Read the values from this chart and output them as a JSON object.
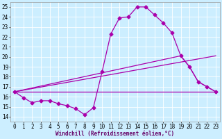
{
  "xlabel": "Windchill (Refroidissement éolien,°C)",
  "bg_color": "#cceeff",
  "grid_color": "#ffffff",
  "line_color": "#aa00aa",
  "xlim": [
    -0.5,
    23.5
  ],
  "ylim": [
    13.5,
    25.5
  ],
  "yticks": [
    14,
    15,
    16,
    17,
    18,
    19,
    20,
    21,
    22,
    23,
    24,
    25
  ],
  "xticks": [
    0,
    1,
    2,
    3,
    4,
    5,
    6,
    7,
    8,
    9,
    10,
    11,
    12,
    13,
    14,
    15,
    16,
    17,
    18,
    19,
    20,
    21,
    22,
    23
  ],
  "line1_x": [
    0,
    1,
    2,
    3,
    4,
    5,
    6,
    7,
    8,
    9,
    10,
    11,
    12,
    13,
    14,
    15,
    16,
    17,
    18,
    19,
    20,
    21,
    22,
    23
  ],
  "line1_y": [
    16.5,
    15.9,
    15.4,
    15.6,
    15.6,
    15.3,
    15.1,
    14.8,
    14.2,
    14.9,
    18.5,
    22.3,
    23.9,
    24.0,
    25.0,
    25.0,
    24.2,
    23.4,
    22.4,
    20.1,
    19.0,
    17.5,
    17.0,
    16.5
  ],
  "line2_x": [
    0,
    23
  ],
  "line2_y": [
    16.5,
    16.5
  ],
  "line3_x": [
    0,
    23
  ],
  "line3_y": [
    16.5,
    20.1
  ],
  "line4_x": [
    0,
    19,
    20,
    21,
    22,
    23
  ],
  "line4_y": [
    16.5,
    20.1,
    19.0,
    17.5,
    17.0,
    16.5
  ],
  "markersize": 2.5,
  "linewidth": 0.9,
  "xlabel_fontsize": 5.5,
  "tick_fontsize": 5.5
}
